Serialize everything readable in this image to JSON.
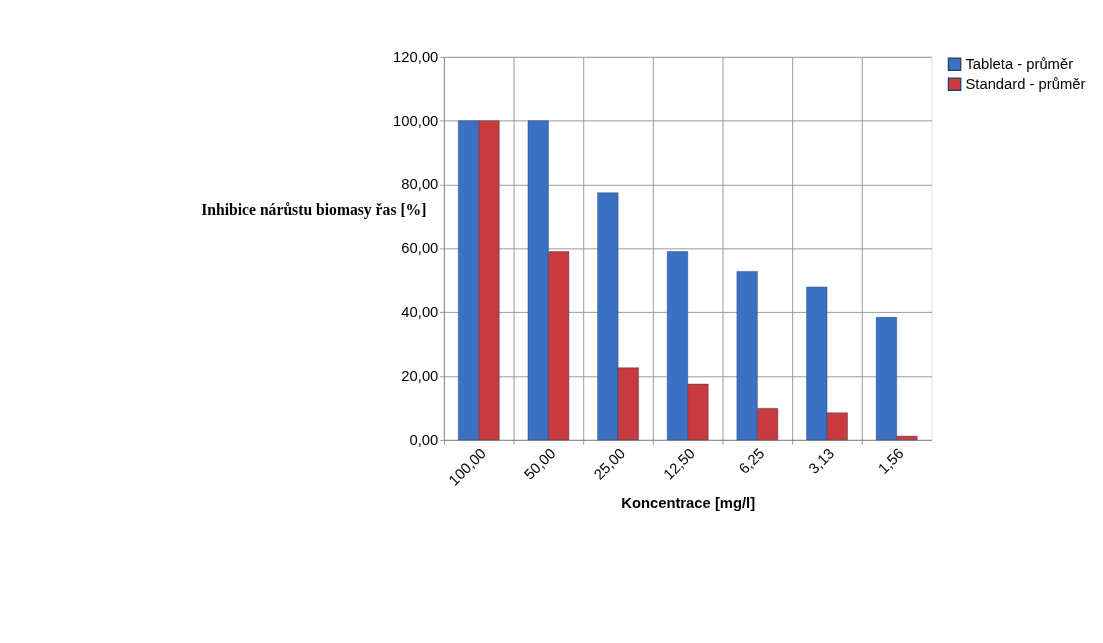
{
  "chart_data": {
    "type": "bar",
    "xlabel": "Koncentrace  [mg/l]",
    "ylabel": "Inhibice nárůstu biomasy řas [%]",
    "categories": [
      "100,00",
      "50,00",
      "25,00",
      "12,50",
      "6,25",
      "3,13",
      "1,56"
    ],
    "series": [
      {
        "name": "Tableta - průměr",
        "color": "#3b70c2",
        "values": [
          100,
          100,
          77.4,
          59.0,
          52.8,
          47.9,
          38.4
        ]
      },
      {
        "name": "Standard - průměr",
        "color": "#c93a3c",
        "values": [
          100,
          59.0,
          22.6,
          17.5,
          9.9,
          8.5,
          1.2
        ]
      }
    ],
    "ylim": [
      0,
      120
    ],
    "yticks": [
      {
        "value": 0,
        "label": "0,00"
      },
      {
        "value": 20,
        "label": "20,00"
      },
      {
        "value": 40,
        "label": "40,00"
      },
      {
        "value": 60,
        "label": "60,00"
      },
      {
        "value": 80,
        "label": "80,00"
      },
      {
        "value": 100,
        "label": "100,00"
      },
      {
        "value": 120,
        "label": "120,00"
      }
    ],
    "grid": true,
    "legend": "right"
  }
}
